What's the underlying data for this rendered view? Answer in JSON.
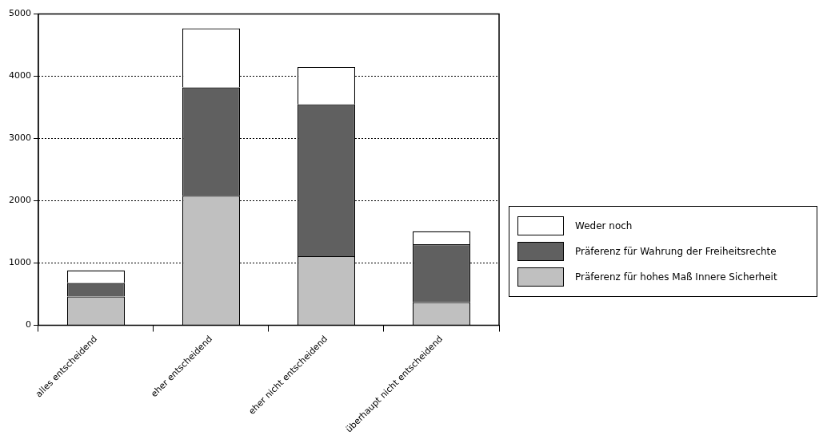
{
  "chart_data": {
    "type": "bar",
    "stacked": true,
    "categories": [
      "alles entscheidend",
      "eher entscheidend",
      "eher nicht entscheidend",
      "überhaupt nicht entscheidend"
    ],
    "series": [
      {
        "name": "Präferenz für hohes Maß Innere Sicherheit",
        "color": "#c0c0c0",
        "values": [
          460,
          2080,
          1110,
          370
        ]
      },
      {
        "name": "Präferenz für Wahrung der Freiheitsrechte",
        "color": "#606060",
        "values": [
          220,
          1740,
          2440,
          930
        ]
      },
      {
        "name": "Weder noch",
        "color": "#ffffff",
        "values": [
          200,
          950,
          600,
          210
        ]
      }
    ],
    "ylim": [
      0,
      5000
    ],
    "yticks": [
      0,
      1000,
      2000,
      3000,
      4000,
      5000
    ],
    "grid": "y",
    "legend": "right"
  }
}
